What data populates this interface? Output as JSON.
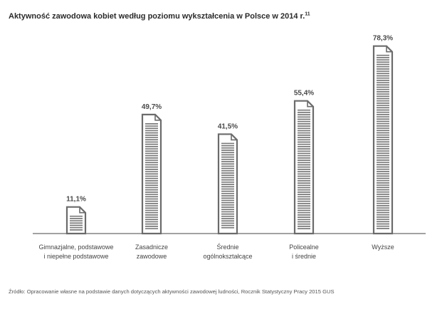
{
  "title": "Aktywność zawodowa kobiet według poziomu wykształcenia w Polsce w 2014 r.",
  "title_footnote": "11",
  "source": "Źródło: Opracowanie własne na podstawie danych dotyczących aktywności zawodowej ludności, Rocznik Statystyczny Pracy 2015 GUS",
  "colors": {
    "bar_stroke": "#6b6b6b",
    "bar_lines": "#7a7a7a",
    "baseline": "#6b6b6b"
  },
  "chart_data": {
    "type": "bar",
    "title": "Aktywność zawodowa kobiet według poziomu wykształcenia w Polsce w 2014 r.",
    "categories": [
      [
        "Gimnazjalne, podstawowe",
        "i niepełne podstawowe"
      ],
      [
        "Zasadnicze",
        "zawodowe"
      ],
      [
        "Średnie",
        "ogólnokształcące"
      ],
      [
        "Policealne",
        "i średnie"
      ],
      [
        "Wyższe"
      ]
    ],
    "values": [
      11.1,
      49.7,
      41.5,
      55.4,
      78.3
    ],
    "value_labels": [
      "11,1%",
      "49,7%",
      "41,5%",
      "55,4%",
      "78,3%"
    ],
    "unit": "%",
    "ylim": [
      0,
      100
    ],
    "grid": false,
    "legend": "none",
    "bar_style": "document-icon"
  }
}
